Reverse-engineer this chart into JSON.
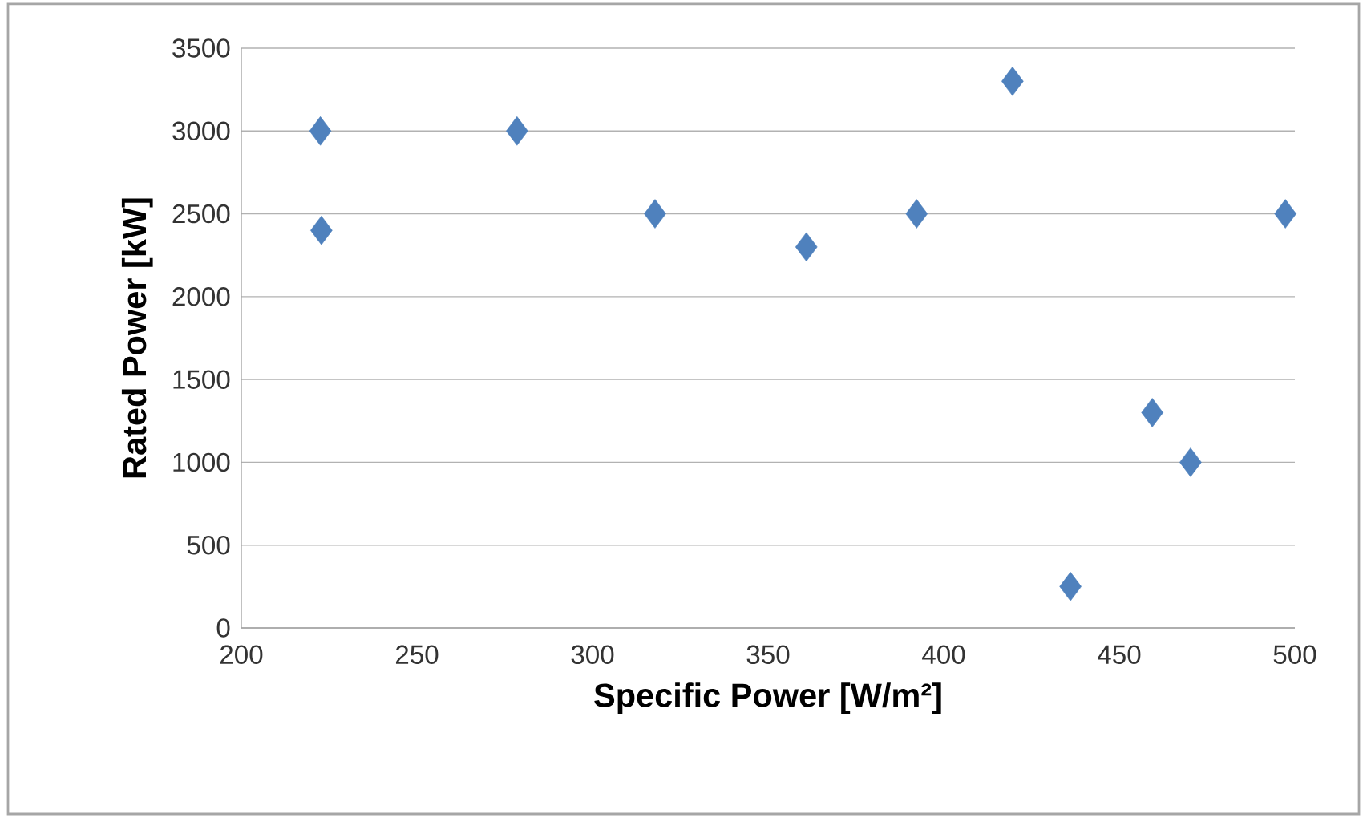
{
  "chart_data": {
    "type": "scatter",
    "xlabel": "Specific Power [W/m²]",
    "ylabel": "Rated Power [kW]",
    "x": [
      222.5,
      222.8,
      278.5,
      317.8,
      360.9,
      392.3,
      419.6,
      436.1,
      459.4,
      470.3,
      497.3
    ],
    "values": [
      3000,
      2400,
      3000,
      2500,
      2300,
      2500,
      3300,
      250,
      1300,
      1000,
      2500
    ],
    "color": "#4f81bd",
    "marker": "diamond",
    "xlim": [
      200,
      500
    ],
    "xticks": [
      200,
      250,
      300,
      350,
      400,
      450,
      500
    ],
    "ylim": [
      0,
      3500
    ],
    "yticks": [
      0,
      500,
      1000,
      1500,
      2000,
      2500,
      3000,
      3500
    ],
    "grid": "y"
  }
}
